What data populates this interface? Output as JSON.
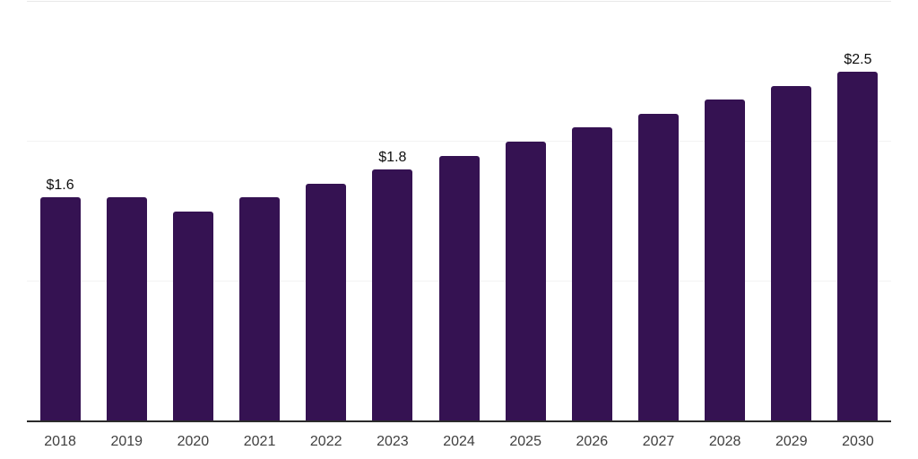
{
  "chart_data": {
    "type": "bar",
    "title": "",
    "xlabel": "",
    "ylabel": "",
    "categories": [
      "2018",
      "2019",
      "2020",
      "2021",
      "2022",
      "2023",
      "2024",
      "2025",
      "2026",
      "2027",
      "2028",
      "2029",
      "2030"
    ],
    "values": [
      1.6,
      1.6,
      1.5,
      1.6,
      1.7,
      1.8,
      1.9,
      2.0,
      2.1,
      2.2,
      2.3,
      2.4,
      2.5
    ],
    "bar_labels": [
      "$1.6",
      "",
      "",
      "",
      "",
      "$1.8",
      "",
      "",
      "",
      "",
      "",
      "",
      "$2.5"
    ],
    "value_prefix": "$",
    "ylim": [
      0,
      3.0
    ],
    "grid": true,
    "gridline_values": [
      1.0,
      2.0,
      3.0
    ],
    "legend_position": "none",
    "colors": {
      "bar": "#351252",
      "gridline": "#f3f3f3",
      "top_gridline": "#e8e8e8",
      "axis_line": "#2b2b2b",
      "tick_label": "#3f3f3f",
      "value_label": "#0e0e0e",
      "background": "#ffffff"
    }
  }
}
